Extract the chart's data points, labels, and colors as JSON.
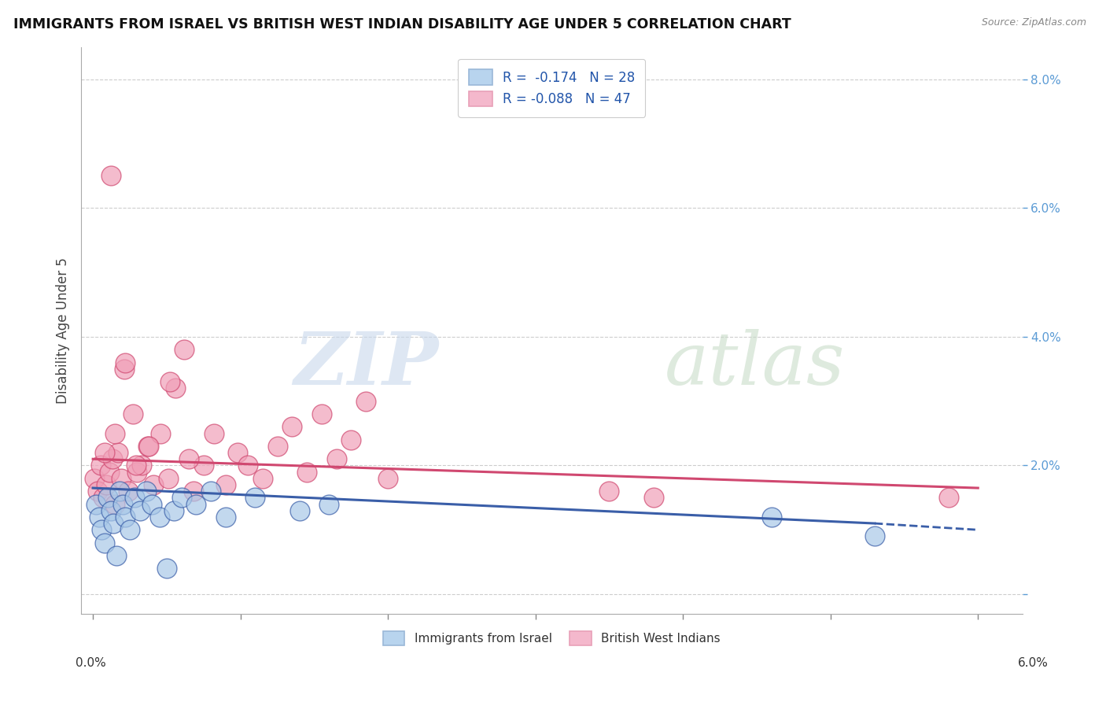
{
  "title": "IMMIGRANTS FROM ISRAEL VS BRITISH WEST INDIAN DISABILITY AGE UNDER 5 CORRELATION CHART",
  "source": "Source: ZipAtlas.com",
  "ylabel": "Disability Age Under 5",
  "xlim": [
    0.0,
    6.0
  ],
  "ylim": [
    -0.3,
    8.5
  ],
  "legend_r1": "R =  -0.174",
  "legend_n1": "N = 28",
  "legend_r2": "R = -0.088",
  "legend_n2": "N = 47",
  "color_israel": "#a8c8e8",
  "color_bwi": "#f0a0b8",
  "color_israel_line": "#3a5ea8",
  "color_bwi_line": "#d04870",
  "legend_color_israel": "#b8d4ee",
  "legend_color_bwi": "#f4b8cc",
  "watermark_zip": "ZIP",
  "watermark_atlas": "atlas",
  "background_color": "#ffffff",
  "grid_color": "#c8c8c8",
  "israel_x": [
    0.02,
    0.04,
    0.06,
    0.08,
    0.1,
    0.12,
    0.14,
    0.16,
    0.18,
    0.2,
    0.22,
    0.25,
    0.28,
    0.32,
    0.36,
    0.4,
    0.45,
    0.5,
    0.55,
    0.6,
    0.7,
    0.8,
    0.9,
    1.1,
    1.4,
    1.6,
    4.6,
    5.3
  ],
  "israel_y": [
    1.4,
    1.2,
    1.0,
    0.8,
    1.5,
    1.3,
    1.1,
    0.6,
    1.6,
    1.4,
    1.2,
    1.0,
    1.5,
    1.3,
    1.6,
    1.4,
    1.2,
    0.4,
    1.3,
    1.5,
    1.4,
    1.6,
    1.2,
    1.5,
    1.3,
    1.4,
    1.2,
    0.9
  ],
  "bwi_x": [
    0.01,
    0.03,
    0.05,
    0.07,
    0.09,
    0.11,
    0.13,
    0.15,
    0.17,
    0.19,
    0.21,
    0.24,
    0.27,
    0.3,
    0.33,
    0.37,
    0.41,
    0.46,
    0.51,
    0.56,
    0.62,
    0.68,
    0.75,
    0.82,
    0.9,
    0.98,
    1.05,
    1.15,
    1.25,
    1.35,
    1.45,
    1.55,
    1.65,
    1.75,
    1.85,
    0.08,
    0.15,
    0.22,
    0.29,
    0.38,
    0.52,
    0.65,
    2.0,
    3.5,
    3.8,
    5.8,
    0.12
  ],
  "bwi_y": [
    1.8,
    1.6,
    2.0,
    1.5,
    1.7,
    1.9,
    2.1,
    1.4,
    2.2,
    1.8,
    3.5,
    1.6,
    2.8,
    1.9,
    2.0,
    2.3,
    1.7,
    2.5,
    1.8,
    3.2,
    3.8,
    1.6,
    2.0,
    2.5,
    1.7,
    2.2,
    2.0,
    1.8,
    2.3,
    2.6,
    1.9,
    2.8,
    2.1,
    2.4,
    3.0,
    2.2,
    2.5,
    3.6,
    2.0,
    2.3,
    3.3,
    2.1,
    1.8,
    1.6,
    1.5,
    1.5,
    6.5
  ]
}
